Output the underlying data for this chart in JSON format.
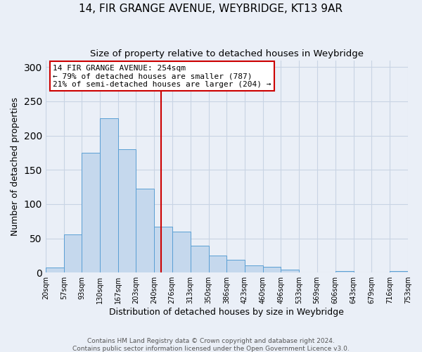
{
  "title": "14, FIR GRANGE AVENUE, WEYBRIDGE, KT13 9AR",
  "subtitle": "Size of property relative to detached houses in Weybridge",
  "xlabel": "Distribution of detached houses by size in Weybridge",
  "ylabel": "Number of detached properties",
  "bar_values": [
    7,
    56,
    175,
    225,
    180,
    123,
    67,
    60,
    39,
    25,
    19,
    10,
    8,
    4,
    0,
    0,
    2,
    0,
    0,
    2
  ],
  "bin_edges": [
    20,
    57,
    93,
    130,
    167,
    203,
    240,
    276,
    313,
    350,
    386,
    423,
    460,
    496,
    533,
    569,
    606,
    643,
    679,
    716,
    753
  ],
  "tick_labels": [
    "20sqm",
    "57sqm",
    "93sqm",
    "130sqm",
    "167sqm",
    "203sqm",
    "240sqm",
    "276sqm",
    "313sqm",
    "350sqm",
    "386sqm",
    "423sqm",
    "460sqm",
    "496sqm",
    "533sqm",
    "569sqm",
    "606sqm",
    "643sqm",
    "679sqm",
    "716sqm",
    "753sqm"
  ],
  "bar_color": "#c5d8ed",
  "bar_edge_color": "#5a9fd4",
  "vline_x": 254,
  "vline_color": "#cc0000",
  "annotation_line1": "14 FIR GRANGE AVENUE: 254sqm",
  "annotation_line2": "← 79% of detached houses are smaller (787)",
  "annotation_line3": "21% of semi-detached houses are larger (204) →",
  "annotation_box_color": "#ffffff",
  "annotation_box_edge": "#cc0000",
  "ylim": [
    0,
    310
  ],
  "yticks": [
    0,
    50,
    100,
    150,
    200,
    250,
    300
  ],
  "grid_color": "#c8d4e4",
  "background_color": "#eaeff7",
  "footer_line1": "Contains HM Land Registry data © Crown copyright and database right 2024.",
  "footer_line2": "Contains public sector information licensed under the Open Government Licence v3.0."
}
